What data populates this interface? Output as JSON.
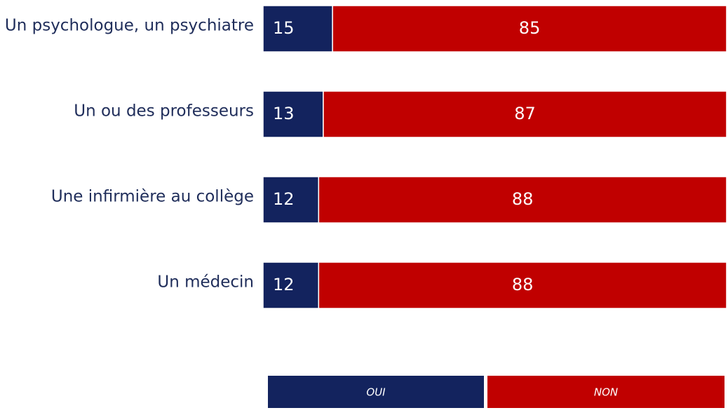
{
  "chart_data": {
    "type": "stacked-bar-horizontal",
    "categories": [
      "Un psychologue, un psychiatre",
      "Un ou des professeurs",
      "Une infirmière au collège",
      "Un médecin"
    ],
    "series": [
      {
        "name": "OUI",
        "color": "#13235e",
        "values": [
          15,
          13,
          12,
          12
        ]
      },
      {
        "name": "NON",
        "color": "#c00000",
        "values": [
          85,
          87,
          88,
          88
        ]
      }
    ],
    "xlim": [
      0,
      100
    ]
  }
}
